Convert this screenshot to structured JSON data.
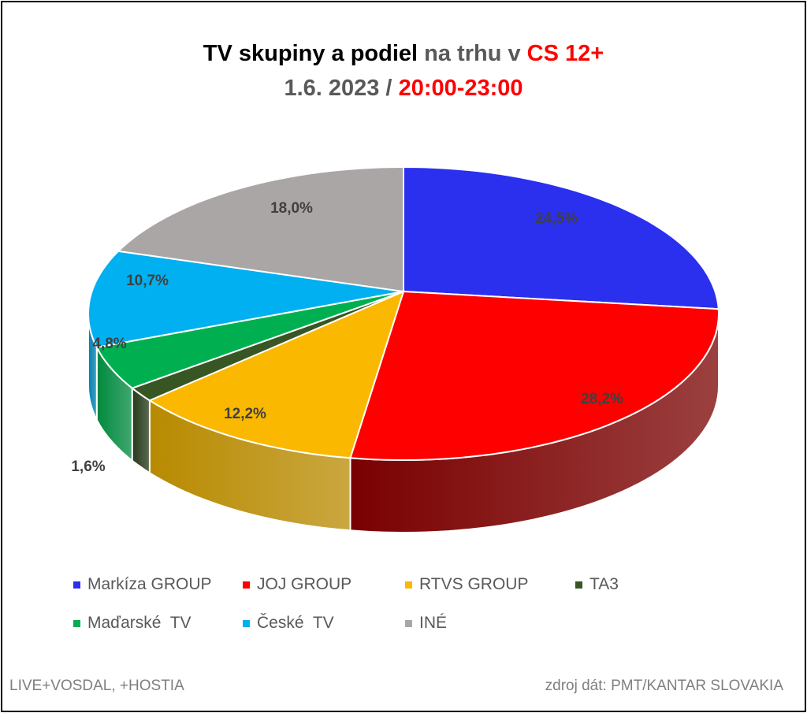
{
  "chart_data": {
    "type": "pie",
    "style": "3d",
    "title": {
      "line1": [
        {
          "text": "TV skupiny a podiel ",
          "color": "#000000"
        },
        {
          "text": "na trhu v ",
          "color": "#595959"
        },
        {
          "text": "CS 12+",
          "color": "#ff0000"
        }
      ],
      "line2": [
        {
          "text": "1.6. 2023 / ",
          "color": "#595959"
        },
        {
          "text": "20:00-23:00",
          "color": "#ff0000"
        }
      ]
    },
    "slices": [
      {
        "name": "Markíza GROUP",
        "value": 24.5,
        "label": "24,5%",
        "color": "#2b2fee",
        "side": "#1a1d9a"
      },
      {
        "name": "JOJ GROUP",
        "value": 28.2,
        "label": "28,2%",
        "color": "#ff0000",
        "side": "#7a0000"
      },
      {
        "name": "RTVS GROUP",
        "value": 12.2,
        "label": "12,2%",
        "color": "#fbb800",
        "side": "#b88a00"
      },
      {
        "name": "TA3",
        "value": 1.6,
        "label": "1,6%",
        "color": "#375623",
        "side": "#25391a"
      },
      {
        "name": "Maďarské  TV",
        "value": 4.8,
        "label": "4,8%",
        "color": "#00b050",
        "side": "#008a3e"
      },
      {
        "name": "České  TV",
        "value": 10.7,
        "label": "10,7%",
        "color": "#00b0f0",
        "side": "#0080b0"
      },
      {
        "name": "INÉ",
        "value": 18.0,
        "label": "18,0%",
        "color": "#aba6a6",
        "side": "#807c7c"
      }
    ],
    "legend_placement": "bottom"
  },
  "footer": {
    "left": "LIVE+VOSDAL, +HOSTIA",
    "right": "zdroj dát: PMT/KANTAR SLOVAKIA"
  }
}
